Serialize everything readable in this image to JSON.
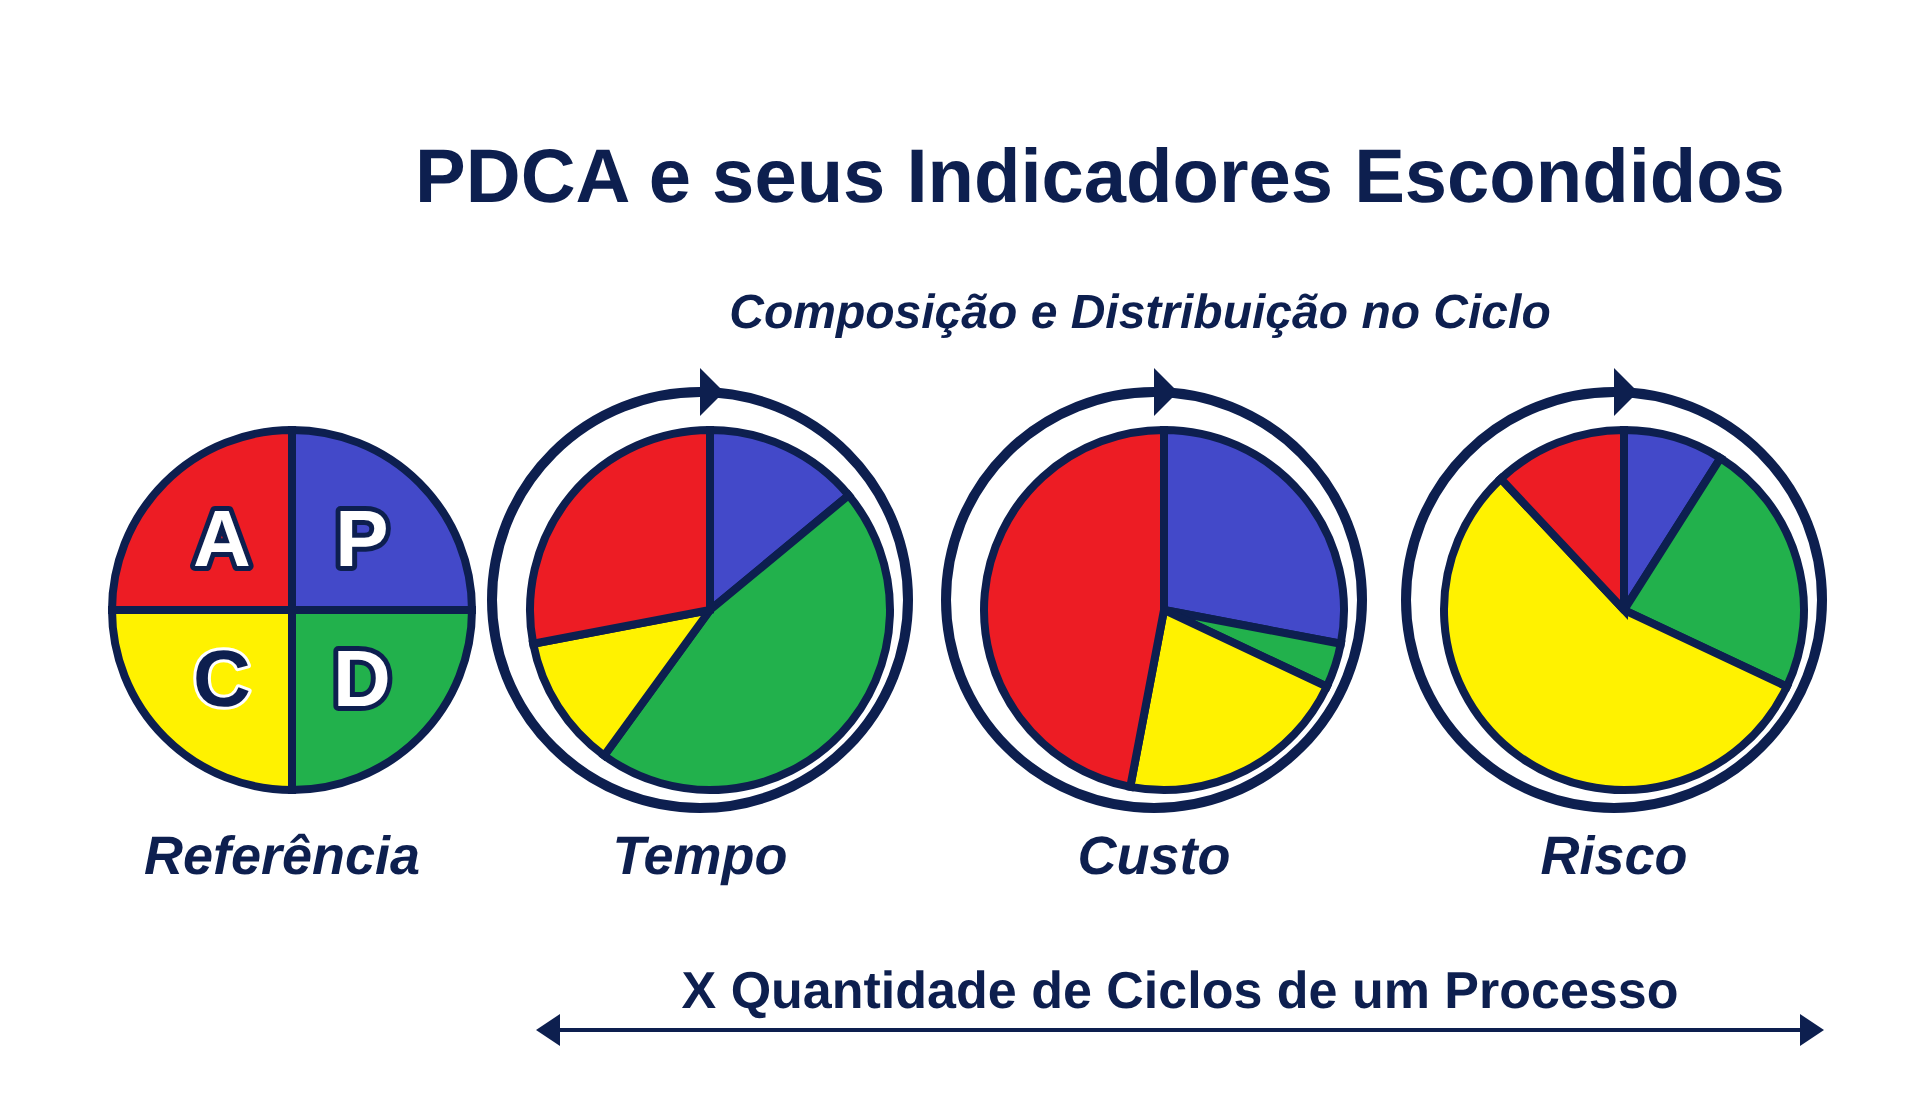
{
  "chart_data": [
    {
      "type": "pie",
      "annotations": [
        "X  Quantidade de Ciclos de um Processo"
      ],
      "xlabel": "Referência",
      "categories": [
        "P",
        "D",
        "C",
        "A"
      ],
      "values": [
        25,
        25,
        25,
        25
      ],
      "colors": [
        "#4349c9",
        "#22b14c",
        "#fff200",
        "#ed1c24"
      ]
    },
    {
      "type": "pie",
      "xlabel": "Tempo",
      "categories": [
        null,
        null,
        null,
        null
      ],
      "values": [
        14,
        46,
        12,
        28
      ],
      "colors": [
        "#4349c9",
        "#22b14c",
        "#fff200",
        "#ed1c24"
      ]
    },
    {
      "type": "pie",
      "title": "PDCA e seus Indicadores Escondidos",
      "subtitle": "Composição e Distribuição no Ciclo",
      "xlabel": "Custo",
      "categories": [
        null,
        null,
        null,
        null
      ],
      "values": [
        28,
        4,
        21,
        47
      ],
      "colors": [
        "#4349c9",
        "#22b14c",
        "#fff200",
        "#ed1c24"
      ]
    },
    {
      "type": "pie",
      "xlabel": "Risco",
      "categories": [
        null,
        null,
        null,
        null
      ],
      "values": [
        9,
        23,
        56,
        12
      ],
      "colors": [
        "#4349c9",
        "#22b14c",
        "#fff200",
        "#ed1c24"
      ]
    }
  ]
}
